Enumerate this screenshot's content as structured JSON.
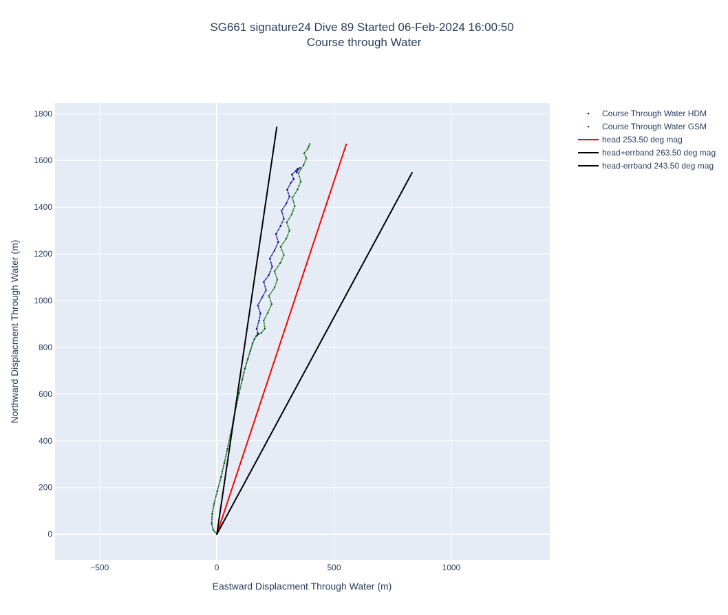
{
  "chart_data": {
    "type": "line",
    "title": "SG661 signature24 Dive 89 Started 06-Feb-2024 16:00:50",
    "subtitle": "Course through Water",
    "xlabel": "Eastward Displacment Through Water (m)",
    "ylabel": "Northward Displacment Through Water (m)",
    "xlim": [
      -690,
      1420
    ],
    "ylim": [
      -110,
      1845
    ],
    "xticks": [
      -500,
      0,
      500,
      1000
    ],
    "xtick_labels": [
      "−500",
      "0",
      "500",
      "1000"
    ],
    "yticks": [
      0,
      200,
      400,
      600,
      800,
      1000,
      1200,
      1400,
      1600,
      1800
    ],
    "ytick_labels": [
      "0",
      "200",
      "400",
      "600",
      "800",
      "1000",
      "1200",
      "1400",
      "1600",
      "1800"
    ],
    "grid": true,
    "legend_position": "top-right",
    "colors": {
      "plot_bg": "#e5ecf6",
      "grid": "#ffffff",
      "hdm": "#00008b",
      "gsm": "#006400",
      "head": "#ff0000",
      "errband": "#000000"
    },
    "series": [
      {
        "name": "Course Through Water HDM",
        "mode": "markers",
        "color": "#00008b",
        "x": [
          0,
          -15,
          -22,
          -20,
          -12,
          2,
          18,
          32,
          45,
          58,
          70,
          82,
          95,
          108,
          120,
          132,
          143,
          152,
          160,
          168,
          172,
          175,
          170,
          180,
          186,
          175,
          194,
          210,
          200,
          222,
          236,
          226,
          246,
          262,
          252,
          272,
          286,
          276,
          296,
          310,
          300,
          316,
          328,
          320,
          336,
          345,
          340,
          354
        ],
        "y": [
          0,
          18,
          45,
          85,
          130,
          185,
          245,
          305,
          365,
          425,
          485,
          545,
          605,
          660,
          710,
          750,
          785,
          815,
          835,
          848,
          852,
          860,
          880,
          915,
          945,
          980,
          1015,
          1045,
          1080,
          1110,
          1145,
          1180,
          1215,
          1250,
          1285,
          1320,
          1350,
          1385,
          1415,
          1445,
          1475,
          1505,
          1520,
          1540,
          1555,
          1565,
          1548,
          1568
        ]
      },
      {
        "name": "Course Through Water GSM",
        "mode": "markers",
        "color": "#006400",
        "x": [
          0,
          -15,
          -22,
          -20,
          -12,
          2,
          18,
          32,
          45,
          58,
          70,
          82,
          95,
          108,
          120,
          132,
          143,
          152,
          160,
          168,
          178,
          190,
          205,
          200,
          218,
          234,
          222,
          246,
          258,
          246,
          270,
          286,
          272,
          296,
          310,
          298,
          320,
          332,
          322,
          344,
          358,
          348,
          370,
          382,
          372,
          388,
          392,
          396
        ],
        "y": [
          0,
          18,
          45,
          85,
          130,
          185,
          245,
          305,
          365,
          425,
          485,
          545,
          605,
          660,
          710,
          750,
          785,
          815,
          835,
          848,
          856,
          862,
          880,
          915,
          950,
          985,
          1020,
          1055,
          1090,
          1125,
          1160,
          1195,
          1230,
          1265,
          1300,
          1335,
          1370,
          1405,
          1440,
          1475,
          1510,
          1545,
          1580,
          1610,
          1630,
          1650,
          1660,
          1670
        ]
      },
      {
        "name": "head 253.50 deg mag",
        "mode": "lines",
        "color": "#ff0000",
        "x": [
          0,
          553
        ],
        "y": [
          0,
          1672
        ]
      },
      {
        "name": "head+errband 263.50 deg mag",
        "mode": "lines",
        "color": "#000000",
        "x": [
          0,
          256
        ],
        "y": [
          0,
          1745
        ]
      },
      {
        "name": "head-errband 243.50 deg mag",
        "mode": "lines",
        "color": "#000000",
        "x": [
          0,
          834
        ],
        "y": [
          0,
          1550
        ]
      }
    ]
  }
}
